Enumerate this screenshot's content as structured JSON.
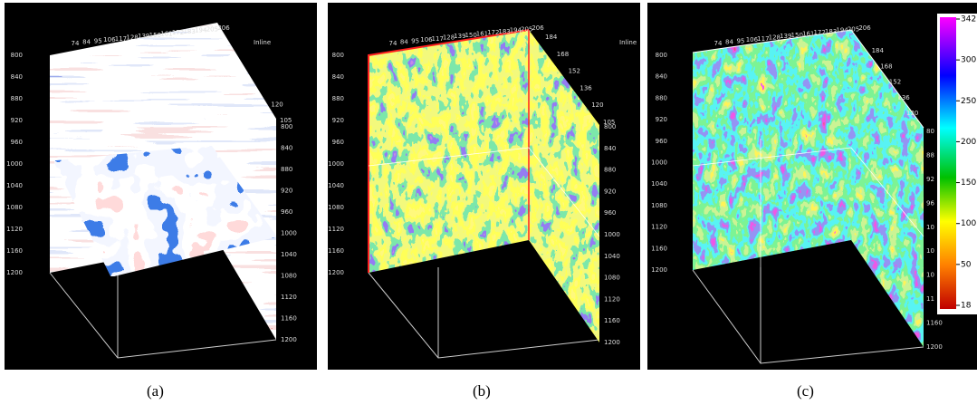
{
  "panels": [
    {
      "caption": "(a)",
      "axis_label": "Inline",
      "inline_ticks": [
        "74",
        "84",
        "95",
        "106",
        "117",
        "128",
        "139",
        "150",
        "161",
        "172",
        "183",
        "194",
        "205",
        "206"
      ],
      "crossline_ticks": [
        "120",
        "105"
      ],
      "left_depth_ticks": [
        "800",
        "840",
        "880",
        "920",
        "960",
        "1000",
        "1040",
        "1080",
        "1120",
        "1160",
        "1200"
      ],
      "right_depth_ticks": [
        "800",
        "840",
        "880",
        "920",
        "960",
        "1000",
        "1040",
        "1080",
        "1120",
        "1160",
        "1200"
      ]
    },
    {
      "caption": "(b)",
      "axis_label": "Inline",
      "inline_ticks": [
        "74",
        "84",
        "95",
        "106",
        "117",
        "128",
        "139",
        "150",
        "161",
        "172",
        "183",
        "194",
        "205",
        "206"
      ],
      "crossline_ticks": [
        "184",
        "168",
        "152",
        "136",
        "120",
        "105"
      ],
      "left_depth_ticks": [
        "800",
        "840",
        "880",
        "920",
        "960",
        "1000",
        "1040",
        "1080",
        "1120",
        "1160",
        "1200"
      ],
      "right_depth_ticks": [
        "800",
        "840",
        "880",
        "920",
        "960",
        "1000",
        "1040",
        "1080",
        "1120",
        "1160",
        "1200"
      ]
    },
    {
      "caption": "(c)",
      "inline_ticks": [
        "74",
        "84",
        "95",
        "106",
        "117",
        "128",
        "139",
        "150",
        "161",
        "172",
        "183",
        "194",
        "205",
        "206"
      ],
      "crossline_ticks": [
        "184",
        "168",
        "152",
        "136",
        "120"
      ],
      "left_depth_ticks": [
        "800",
        "840",
        "880",
        "920",
        "960",
        "1000",
        "1040",
        "1080",
        "1120",
        "1160",
        "1200"
      ],
      "right_depth_ticks": [
        "80",
        "88",
        "92",
        "96",
        "10",
        "10",
        "10",
        "11",
        "1160",
        "1200"
      ],
      "colorbar_ticks": [
        "342",
        "300",
        "250",
        "200",
        "150",
        "100",
        "50",
        "18"
      ]
    }
  ]
}
